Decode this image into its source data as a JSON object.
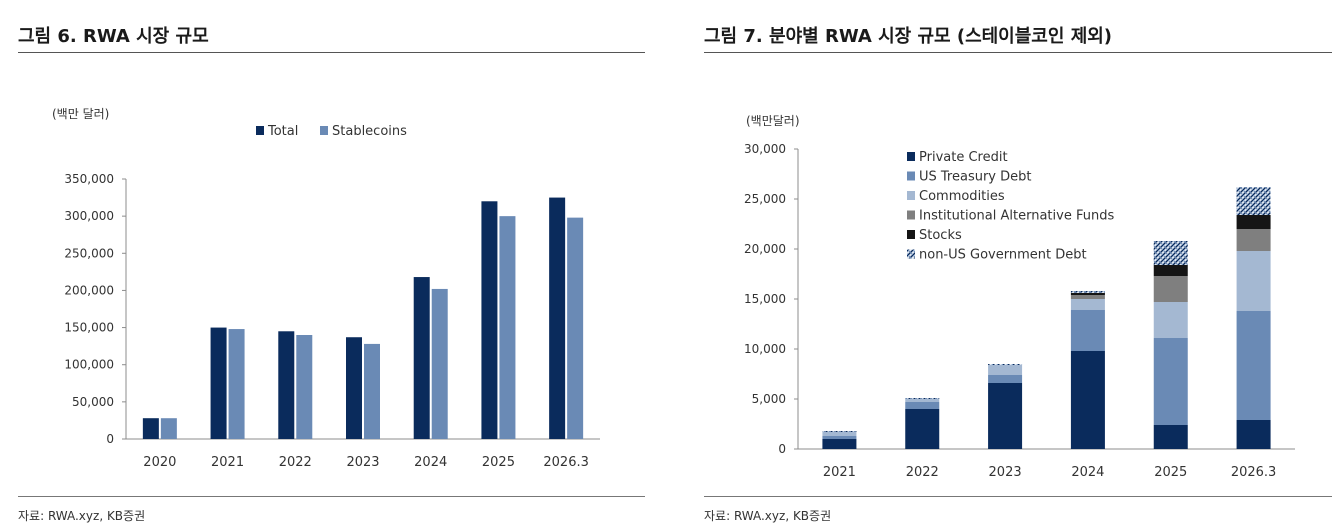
{
  "figure_left": {
    "title": "그림 6. RWA 시장 규모",
    "source": "자료: RWA.xyz, KB증권"
  },
  "figure_right": {
    "title": "그림 7. 분야별 RWA 시장 규모 (스테이블코인 제외)",
    "source": "자료: RWA.xyz, KB증권"
  },
  "colors": {
    "navy": "#0a2b5c",
    "steel": "#6a8ab5",
    "light_steel": "#a4b8d2",
    "gray": "#7f7f7f",
    "black": "#151515",
    "axis": "#8c8c8c"
  },
  "chart_data": [
    {
      "type": "bar",
      "title": "RWA 시장 규모",
      "unit_label": "(백만 달러)",
      "categories": [
        "2020",
        "2021",
        "2022",
        "2023",
        "2024",
        "2025",
        "2026.3"
      ],
      "series": [
        {
          "name": "Total",
          "values": [
            28000,
            150000,
            145000,
            137000,
            218000,
            320000,
            325000
          ]
        },
        {
          "name": "Stablecoins",
          "values": [
            28000,
            148000,
            140000,
            128000,
            202000,
            300000,
            298000
          ]
        }
      ],
      "ylim": [
        0,
        350000
      ],
      "yticks": [
        0,
        50000,
        100000,
        150000,
        200000,
        250000,
        300000,
        350000
      ],
      "ytick_labels": [
        "0",
        "50,000",
        "100,000",
        "150,000",
        "200,000",
        "250,000",
        "300,000",
        "350,000"
      ],
      "legend": "top-center"
    },
    {
      "type": "bar",
      "stacked": true,
      "title": "분야별 RWA 시장 규모 (스테이블코인 제외)",
      "unit_label": "(백만달러)",
      "categories": [
        "2021",
        "2022",
        "2023",
        "2024",
        "2025",
        "2026.3"
      ],
      "series": [
        {
          "name": "Private Credit",
          "values": [
            1000,
            4000,
            6600,
            9800,
            2400,
            2900
          ]
        },
        {
          "name": "US Treasury Debt",
          "values": [
            300,
            700,
            800,
            4100,
            8700,
            10900
          ]
        },
        {
          "name": "Commodities",
          "values": [
            400,
            300,
            1000,
            1100,
            3600,
            6000
          ]
        },
        {
          "name": "Institutional Alternative Funds",
          "values": [
            0,
            0,
            0,
            400,
            2600,
            2200
          ]
        },
        {
          "name": "Stocks",
          "values": [
            0,
            0,
            0,
            200,
            1100,
            1400
          ]
        },
        {
          "name": "non-US Government Debt",
          "values": [
            100,
            100,
            100,
            200,
            2400,
            2800
          ]
        }
      ],
      "ylim": [
        0,
        30000
      ],
      "yticks": [
        0,
        5000,
        10000,
        15000,
        20000,
        25000,
        30000
      ],
      "ytick_labels": [
        "0",
        "5,000",
        "10,000",
        "15,000",
        "20,000",
        "25,000",
        "30,000"
      ],
      "legend": "top-left"
    }
  ]
}
